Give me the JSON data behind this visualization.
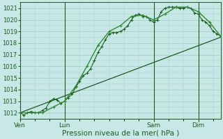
{
  "background_color": "#c8e8e8",
  "grid_color": "#99ccbb",
  "line_color_dark": "#1a5c1a",
  "line_color_medium": "#2e8b2e",
  "xlabel": "Pression niveau de la mer( hPa )",
  "ylim": [
    1011.5,
    1021.5
  ],
  "yticks": [
    1012,
    1013,
    1014,
    1015,
    1016,
    1017,
    1018,
    1019,
    1020,
    1021
  ],
  "day_labels": [
    "Ven",
    "Lun",
    "Sam",
    "Dim"
  ],
  "day_positions": [
    0,
    12,
    36,
    48
  ],
  "xlim": [
    0,
    54
  ],
  "series1_x": [
    0,
    1,
    2,
    3,
    4,
    5,
    6,
    7,
    8,
    9,
    10,
    11,
    12,
    13,
    14,
    15,
    16,
    17,
    18,
    19,
    20,
    21,
    22,
    23,
    24,
    25,
    26,
    27,
    28,
    29,
    30,
    31,
    32,
    33,
    34,
    35,
    36,
    37,
    38,
    39,
    40,
    41,
    42,
    43,
    44,
    45,
    46,
    47,
    48,
    49,
    50,
    51,
    52,
    53,
    54
  ],
  "series1_y": [
    1012.0,
    1011.8,
    1012.0,
    1012.1,
    1012.0,
    1012.0,
    1012.2,
    1012.4,
    1013.0,
    1013.2,
    1013.1,
    1012.8,
    1013.0,
    1013.3,
    1013.6,
    1014.2,
    1014.7,
    1015.2,
    1015.4,
    1015.8,
    1016.5,
    1017.2,
    1017.7,
    1018.3,
    1018.8,
    1018.9,
    1018.9,
    1019.0,
    1019.2,
    1019.5,
    1020.0,
    1020.4,
    1020.5,
    1020.3,
    1020.3,
    1020.0,
    1019.8,
    1020.0,
    1020.7,
    1021.0,
    1021.1,
    1021.1,
    1021.1,
    1021.0,
    1021.0,
    1021.1,
    1021.0,
    1020.6,
    1020.5,
    1020.0,
    1019.8,
    1019.5,
    1019.0,
    1018.8,
    1018.6
  ],
  "series2_x": [
    0,
    3,
    6,
    9,
    12,
    15,
    18,
    21,
    24,
    27,
    30,
    33,
    36,
    39,
    42,
    45,
    48,
    51,
    54
  ],
  "series2_y": [
    1012.0,
    1012.0,
    1012.0,
    1012.5,
    1013.0,
    1014.3,
    1016.0,
    1017.8,
    1019.0,
    1019.5,
    1020.3,
    1020.4,
    1020.0,
    1020.5,
    1021.1,
    1021.1,
    1020.7,
    1019.8,
    1018.6
  ],
  "series3_x": [
    0,
    54
  ],
  "series3_y": [
    1012.0,
    1018.5
  ]
}
